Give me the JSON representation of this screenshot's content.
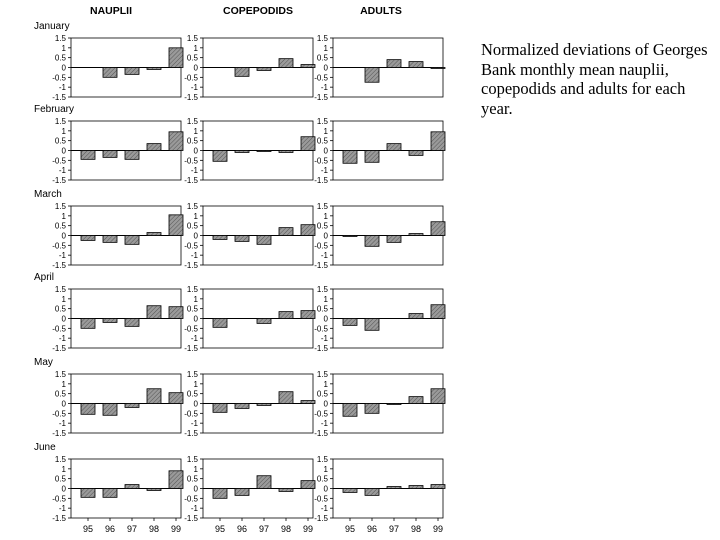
{
  "caption": "Normalized deviations of Georges Bank monthly mean nauplii, copepodids and adults for each year.",
  "column_titles": [
    "NAUPLII",
    "COPEPODIDS",
    "ADULTS"
  ],
  "colors": {
    "bar_fill": "#8a8a8a",
    "bar_stroke": "#000000",
    "axis": "#000000"
  },
  "chart_data": {
    "type": "bar",
    "layout": "grid 6 rows (months) x 3 columns (life stages)",
    "categories": [
      "95",
      "96",
      "97",
      "98",
      "99"
    ],
    "yticks": [
      "1.5",
      "1",
      "0.5",
      "0",
      "-0.5",
      "-1",
      "-1.5"
    ],
    "ylim": [
      -1.5,
      1.5
    ],
    "rows": [
      {
        "month": "January",
        "panels": [
          {
            "stage": "NAUPLII",
            "values": [
              0.0,
              -0.5,
              -0.35,
              -0.1,
              1.0
            ]
          },
          {
            "stage": "COPEPODIDS",
            "values": [
              0.0,
              -0.45,
              -0.15,
              0.45,
              0.15
            ]
          },
          {
            "stage": "ADULTS",
            "values": [
              0.0,
              -0.75,
              0.4,
              0.3,
              -0.05
            ]
          }
        ]
      },
      {
        "month": "February",
        "panels": [
          {
            "stage": "NAUPLII",
            "values": [
              -0.45,
              -0.35,
              -0.45,
              0.35,
              0.95
            ]
          },
          {
            "stage": "COPEPODIDS",
            "values": [
              -0.55,
              -0.1,
              -0.05,
              -0.1,
              0.7
            ]
          },
          {
            "stage": "ADULTS",
            "values": [
              -0.65,
              -0.6,
              0.35,
              -0.25,
              0.95
            ]
          }
        ]
      },
      {
        "month": "March",
        "panels": [
          {
            "stage": "NAUPLII",
            "values": [
              -0.25,
              -0.35,
              -0.45,
              0.15,
              1.05
            ]
          },
          {
            "stage": "COPEPODIDS",
            "values": [
              -0.2,
              -0.3,
              -0.45,
              0.4,
              0.55
            ]
          },
          {
            "stage": "ADULTS",
            "values": [
              -0.05,
              -0.55,
              -0.35,
              0.1,
              0.7
            ]
          }
        ]
      },
      {
        "month": "April",
        "panels": [
          {
            "stage": "NAUPLII",
            "values": [
              -0.5,
              -0.2,
              -0.4,
              0.65,
              0.6
            ]
          },
          {
            "stage": "COPEPODIDS",
            "values": [
              -0.45,
              0.0,
              -0.25,
              0.35,
              0.4
            ]
          },
          {
            "stage": "ADULTS",
            "values": [
              -0.35,
              -0.6,
              0.0,
              0.25,
              0.7
            ]
          }
        ]
      },
      {
        "month": "May",
        "panels": [
          {
            "stage": "NAUPLII",
            "values": [
              -0.55,
              -0.6,
              -0.2,
              0.75,
              0.55
            ]
          },
          {
            "stage": "COPEPODIDS",
            "values": [
              -0.45,
              -0.25,
              -0.1,
              0.6,
              0.15
            ]
          },
          {
            "stage": "ADULTS",
            "values": [
              -0.65,
              -0.5,
              -0.05,
              0.35,
              0.75
            ]
          }
        ]
      },
      {
        "month": "June",
        "panels": [
          {
            "stage": "NAUPLII",
            "values": [
              -0.45,
              -0.45,
              0.2,
              -0.1,
              0.9
            ]
          },
          {
            "stage": "COPEPODIDS",
            "values": [
              -0.5,
              -0.35,
              0.65,
              -0.15,
              0.4
            ]
          },
          {
            "stage": "ADULTS",
            "values": [
              -0.2,
              -0.35,
              0.1,
              0.15,
              0.2
            ]
          }
        ]
      }
    ]
  }
}
